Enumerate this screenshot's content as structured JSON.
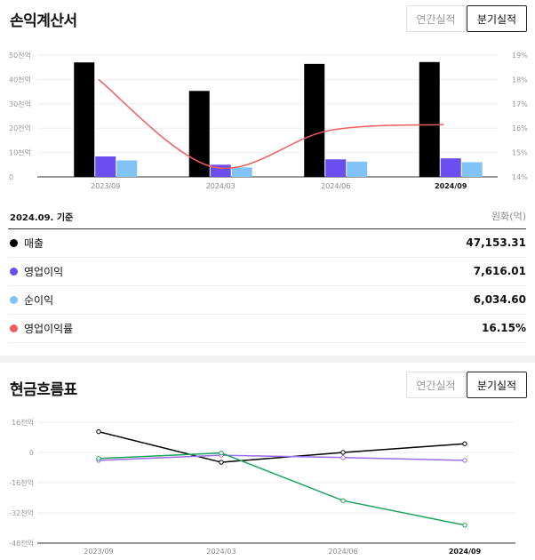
{
  "pl": {
    "title": "손익계산서",
    "btn_annual": "연간실적",
    "btn_quarterly": "분기실적",
    "basis": "2024.09. 기준",
    "unit": "원화(억)",
    "rows": [
      {
        "label": "매출",
        "value": "47,153.31",
        "color": "#000000"
      },
      {
        "label": "영업이익",
        "value": "7,616.01",
        "color": "#6a4ef0"
      },
      {
        "label": "순이익",
        "value": "6,034.60",
        "color": "#82c3f7"
      },
      {
        "label": "영업이익률",
        "value": "16.15%",
        "color": "#f25e5e"
      }
    ]
  },
  "cf": {
    "title": "현금흐름표",
    "btn_annual": "연간실적",
    "btn_quarterly": "분기실적"
  },
  "chart_data": [
    {
      "type": "bar",
      "categories": [
        "2023/09",
        "2024/03",
        "2024/06",
        "2024/09"
      ],
      "series": [
        {
          "name": "매출",
          "values": [
            47000,
            35300,
            46400,
            47153.31
          ],
          "color": "#000000"
        },
        {
          "name": "영업이익",
          "values": [
            8400,
            5000,
            7200,
            7616.01
          ],
          "color": "#6a4ef0"
        },
        {
          "name": "순이익",
          "values": [
            6800,
            3900,
            6300,
            6034.6
          ],
          "color": "#82c3f7"
        },
        {
          "name": "영업이익률",
          "values": [
            18.0,
            14.4,
            15.9,
            16.15
          ],
          "color": "#f25e5e",
          "axis": "right",
          "kind": "line"
        }
      ],
      "yticks_left": [
        "0",
        "10천억",
        "20천억",
        "30천억",
        "40천억",
        "50천억"
      ],
      "ylim_left": [
        0,
        50000
      ],
      "yticks_right": [
        "14%",
        "15%",
        "16%",
        "17%",
        "18%",
        "19%"
      ],
      "ylim_right": [
        14,
        19
      ],
      "highlight_category": "2024/09"
    },
    {
      "type": "line",
      "categories": [
        "2023/09",
        "2024/03",
        "2024/06",
        "2024/09"
      ],
      "series": [
        {
          "name": "black",
          "values": [
            11000,
            -5200,
            0,
            4600
          ],
          "color": "#000000"
        },
        {
          "name": "purple",
          "values": [
            -4200,
            -1500,
            -2700,
            -4200
          ],
          "color": "#9b6cf0"
        },
        {
          "name": "green",
          "values": [
            -3200,
            -300,
            -25500,
            -38500
          ],
          "color": "#17a35a"
        }
      ],
      "yticks": [
        "16천억",
        "0",
        "-16천억",
        "-32천억",
        "-48천억"
      ],
      "ylim": [
        -48000,
        16000
      ],
      "highlight_category": "2024/09"
    }
  ]
}
